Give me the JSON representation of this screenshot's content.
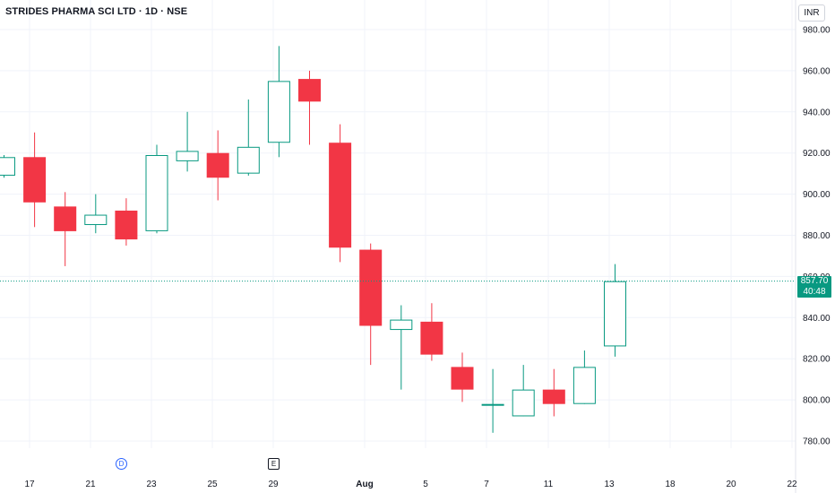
{
  "header": {
    "title": "STRIDES PHARMA SCI LTD · 1D · NSE",
    "currency_button": "INR"
  },
  "price_tag": {
    "price": "857.70",
    "countdown": "40:48"
  },
  "events": {
    "dividend_label": "D",
    "earnings_label": "E"
  },
  "colors": {
    "up": "#089981",
    "down": "#f23645",
    "grid": "#f0f3fa",
    "axis_text": "#131722",
    "price_line": "#089981"
  },
  "chart_data": {
    "type": "candlestick",
    "symbol": "STRIDES PHARMA SCI LTD",
    "interval": "1D",
    "exchange": "NSE",
    "current_price": 857.7,
    "ylim": [
      768,
      986
    ],
    "y_ticks": [
      "980.00",
      "960.00",
      "940.00",
      "920.00",
      "900.00",
      "880.00",
      "860.00",
      "840.00",
      "820.00",
      "800.00",
      "780.00"
    ],
    "x_ticks": [
      "17",
      "21",
      "23",
      "25",
      "29",
      "Aug",
      "5",
      "7",
      "11",
      "13",
      "18",
      "20",
      "22"
    ],
    "grid": true,
    "candles": [
      {
        "open": 909,
        "high": 919,
        "low": 908,
        "close": 918
      },
      {
        "open": 918,
        "high": 930,
        "low": 884,
        "close": 896
      },
      {
        "open": 894,
        "high": 901,
        "low": 865,
        "close": 882
      },
      {
        "open": 885,
        "high": 900,
        "low": 881,
        "close": 890
      },
      {
        "open": 892,
        "high": 898,
        "low": 875,
        "close": 878
      },
      {
        "open": 882,
        "high": 924,
        "low": 881,
        "close": 919
      },
      {
        "open": 916,
        "high": 940,
        "low": 911,
        "close": 921
      },
      {
        "open": 920,
        "high": 931,
        "low": 897,
        "close": 908
      },
      {
        "open": 910,
        "high": 946,
        "low": 909,
        "close": 923
      },
      {
        "open": 925,
        "high": 972,
        "low": 918,
        "close": 955
      },
      {
        "open": 956,
        "high": 960,
        "low": 924,
        "close": 945
      },
      {
        "open": 925,
        "high": 934,
        "low": 867,
        "close": 874
      },
      {
        "open": 873,
        "high": 876,
        "low": 817,
        "close": 836
      },
      {
        "open": 834,
        "high": 846,
        "low": 805,
        "close": 839
      },
      {
        "open": 838,
        "high": 847,
        "low": 819,
        "close": 822
      },
      {
        "open": 816,
        "high": 823,
        "low": 799,
        "close": 805
      },
      {
        "open": 798,
        "high": 815,
        "low": 784,
        "close": 798
      },
      {
        "open": 792,
        "high": 817,
        "low": 792,
        "close": 805
      },
      {
        "open": 805,
        "high": 815,
        "low": 792,
        "close": 798
      },
      {
        "open": 798,
        "high": 824,
        "low": 798,
        "close": 816
      },
      {
        "open": 826,
        "high": 866,
        "low": 821,
        "close": 857.7
      }
    ]
  }
}
